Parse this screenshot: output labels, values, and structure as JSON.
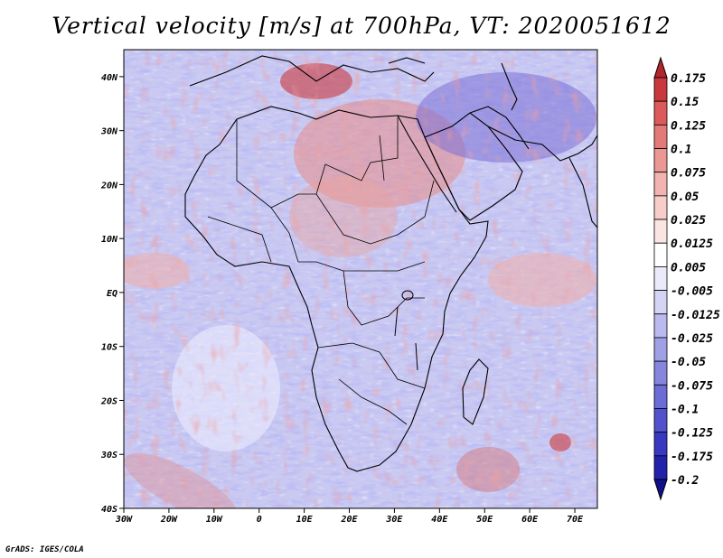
{
  "title": "Vertical velocity [m/s] at 700hPa, VT: 2020051612",
  "credit": "GrADS: IGES/COLA",
  "map": {
    "field": "Vertical velocity",
    "units": "m/s",
    "level": "700hPa",
    "valid_time": "2020051612",
    "lon_range": [
      -30,
      75
    ],
    "lat_range": [
      -40,
      45
    ],
    "x_ticks": [
      {
        "value": -30,
        "label": "30W"
      },
      {
        "value": -20,
        "label": "20W"
      },
      {
        "value": -10,
        "label": "10W"
      },
      {
        "value": 0,
        "label": "0"
      },
      {
        "value": 10,
        "label": "10E"
      },
      {
        "value": 20,
        "label": "20E"
      },
      {
        "value": 30,
        "label": "30E"
      },
      {
        "value": 40,
        "label": "40E"
      },
      {
        "value": 50,
        "label": "50E"
      },
      {
        "value": 60,
        "label": "60E"
      },
      {
        "value": 70,
        "label": "70E"
      }
    ],
    "y_ticks": [
      {
        "value": 40,
        "label": "40N"
      },
      {
        "value": 30,
        "label": "30N"
      },
      {
        "value": 20,
        "label": "20N"
      },
      {
        "value": 10,
        "label": "10N"
      },
      {
        "value": 0,
        "label": "EQ"
      },
      {
        "value": -10,
        "label": "10S"
      },
      {
        "value": -20,
        "label": "20S"
      },
      {
        "value": -30,
        "label": "30S"
      },
      {
        "value": -40,
        "label": "40S"
      }
    ]
  },
  "colorbar": {
    "levels": [
      "0.175",
      "0.15",
      "0.125",
      "0.1",
      "0.075",
      "0.05",
      "0.025",
      "0.0125",
      "0.005",
      "-0.005",
      "-0.0125",
      "-0.025",
      "-0.05",
      "-0.075",
      "-0.1",
      "-0.125",
      "-0.175",
      "-0.2"
    ],
    "colors": [
      "#b3262c",
      "#c9393c",
      "#dc5a5a",
      "#e47a78",
      "#eb9894",
      "#f1b4b0",
      "#f6cdc9",
      "#fbe5e2",
      "#ffffff",
      "#ebeafa",
      "#d4d4f4",
      "#babaee",
      "#a0a0e6",
      "#8686de",
      "#6c6cd6",
      "#5252cc",
      "#3838c0",
      "#2222aa",
      "#10108a"
    ]
  },
  "colors": {
    "sinking": "#8e8ee6",
    "rising": "#e06060",
    "coast": "#000000"
  }
}
